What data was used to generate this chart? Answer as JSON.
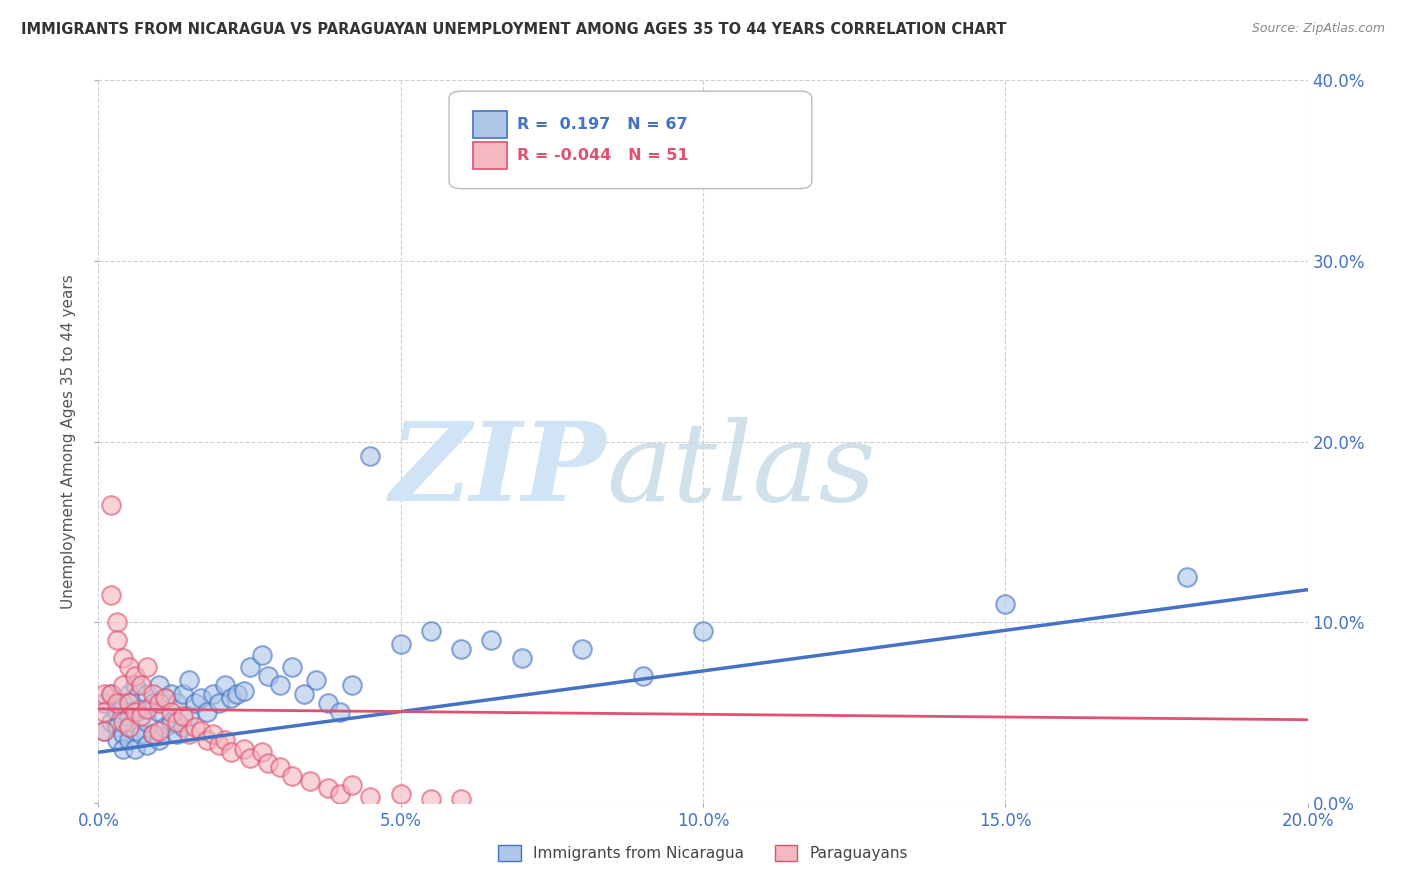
{
  "title": "IMMIGRANTS FROM NICARAGUA VS PARAGUAYAN UNEMPLOYMENT AMONG AGES 35 TO 44 YEARS CORRELATION CHART",
  "source": "Source: ZipAtlas.com",
  "ylabel": "Unemployment Among Ages 35 to 44 years",
  "series": [
    {
      "name": "Immigrants from Nicaragua",
      "color": "#aec6e8",
      "edge_color": "#4472c4",
      "R": 0.197,
      "N": 67,
      "slope": 0.45,
      "intercept": 0.028
    },
    {
      "name": "Paraguayans",
      "color": "#f4b8c1",
      "edge_color": "#e05070",
      "R": -0.044,
      "N": 51,
      "slope": -0.03,
      "intercept": 0.052
    }
  ],
  "xlim": [
    0.0,
    0.2
  ],
  "ylim": [
    0.0,
    0.4
  ],
  "xticks": [
    0.0,
    0.05,
    0.1,
    0.15,
    0.2
  ],
  "yticks": [
    0.0,
    0.1,
    0.2,
    0.3,
    0.4
  ],
  "background_color": "#ffffff",
  "watermark_zip": "ZIP",
  "watermark_atlas": "atlas",
  "watermark_color": "#d0e4f5",
  "grid_color": "#d0d0d0",
  "title_color": "#333333",
  "axis_label_color": "#555555",
  "tick_label_color": "#4472c4",
  "blue_scatter_x": [
    0.001,
    0.001,
    0.002,
    0.002,
    0.003,
    0.003,
    0.003,
    0.004,
    0.004,
    0.004,
    0.005,
    0.005,
    0.005,
    0.005,
    0.006,
    0.006,
    0.006,
    0.007,
    0.007,
    0.008,
    0.008,
    0.008,
    0.009,
    0.009,
    0.01,
    0.01,
    0.01,
    0.011,
    0.011,
    0.012,
    0.012,
    0.013,
    0.013,
    0.014,
    0.014,
    0.015,
    0.015,
    0.016,
    0.017,
    0.018,
    0.019,
    0.02,
    0.021,
    0.022,
    0.023,
    0.024,
    0.025,
    0.027,
    0.028,
    0.03,
    0.032,
    0.034,
    0.036,
    0.038,
    0.04,
    0.042,
    0.045,
    0.05,
    0.055,
    0.06,
    0.065,
    0.07,
    0.08,
    0.09,
    0.1,
    0.15,
    0.18
  ],
  "blue_scatter_y": [
    0.055,
    0.04,
    0.06,
    0.045,
    0.05,
    0.042,
    0.035,
    0.055,
    0.038,
    0.03,
    0.06,
    0.048,
    0.042,
    0.035,
    0.065,
    0.04,
    0.03,
    0.052,
    0.038,
    0.06,
    0.045,
    0.032,
    0.055,
    0.038,
    0.065,
    0.05,
    0.035,
    0.058,
    0.042,
    0.06,
    0.045,
    0.055,
    0.038,
    0.06,
    0.042,
    0.068,
    0.048,
    0.055,
    0.058,
    0.05,
    0.06,
    0.055,
    0.065,
    0.058,
    0.06,
    0.062,
    0.075,
    0.082,
    0.07,
    0.065,
    0.075,
    0.06,
    0.068,
    0.055,
    0.05,
    0.065,
    0.192,
    0.088,
    0.095,
    0.085,
    0.09,
    0.08,
    0.085,
    0.07,
    0.095,
    0.11,
    0.125
  ],
  "pink_scatter_x": [
    0.001,
    0.001,
    0.001,
    0.002,
    0.002,
    0.002,
    0.003,
    0.003,
    0.003,
    0.004,
    0.004,
    0.004,
    0.005,
    0.005,
    0.005,
    0.006,
    0.006,
    0.007,
    0.007,
    0.008,
    0.008,
    0.009,
    0.009,
    0.01,
    0.01,
    0.011,
    0.012,
    0.013,
    0.014,
    0.015,
    0.016,
    0.017,
    0.018,
    0.019,
    0.02,
    0.021,
    0.022,
    0.024,
    0.025,
    0.027,
    0.028,
    0.03,
    0.032,
    0.035,
    0.038,
    0.04,
    0.042,
    0.045,
    0.05,
    0.055,
    0.06
  ],
  "pink_scatter_y": [
    0.06,
    0.05,
    0.04,
    0.165,
    0.115,
    0.06,
    0.1,
    0.09,
    0.055,
    0.08,
    0.065,
    0.045,
    0.075,
    0.055,
    0.042,
    0.07,
    0.05,
    0.065,
    0.048,
    0.075,
    0.052,
    0.06,
    0.038,
    0.055,
    0.04,
    0.058,
    0.05,
    0.045,
    0.048,
    0.038,
    0.042,
    0.04,
    0.035,
    0.038,
    0.032,
    0.035,
    0.028,
    0.03,
    0.025,
    0.028,
    0.022,
    0.02,
    0.015,
    0.012,
    0.008,
    0.005,
    0.01,
    0.003,
    0.005,
    0.002,
    0.002
  ]
}
